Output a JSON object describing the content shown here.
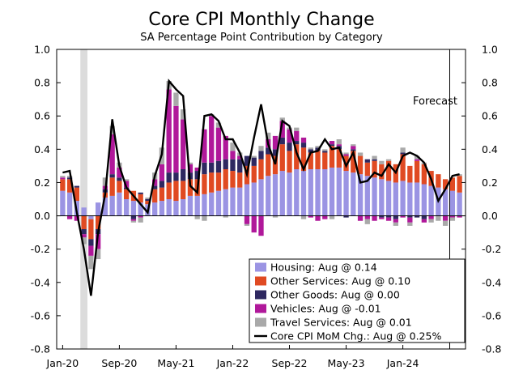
{
  "chart_data": {
    "type": "bar",
    "title": "Core CPI Monthly Change",
    "subtitle": "SA Percentage Point Contribution by Category",
    "x_tick_labels": [
      "Jan-20",
      "Sep-20",
      "May-21",
      "Jan-22",
      "Sep-22",
      "May-23",
      "Jan-24"
    ],
    "x_tick_indices": [
      0,
      8,
      16,
      24,
      32,
      40,
      48
    ],
    "ylim": [
      -0.8,
      1.0
    ],
    "y_ticks": [
      -0.8,
      -0.6,
      -0.4,
      -0.2,
      0.0,
      0.2,
      0.4,
      0.6,
      0.8,
      1.0
    ],
    "y_tick_labels": [
      "-0.8",
      "-0.6",
      "-0.4",
      "-0.2",
      "0.0",
      "0.2",
      "0.4",
      "0.6",
      "0.8",
      "1.0"
    ],
    "grid": false,
    "legend_position": "bottom-right",
    "annotation": "Forecast",
    "shaded_month_index": 3,
    "forecast_start_index": 55,
    "stacked": true,
    "series": [
      {
        "name": "Housing: Aug @ 0.14",
        "key": "housing",
        "color": "#9b94e3",
        "values": [
          0.15,
          0.14,
          0.09,
          0.05,
          -0.02,
          0.08,
          0.11,
          0.12,
          0.14,
          0.1,
          0.09,
          0.08,
          0.07,
          0.08,
          0.09,
          0.1,
          0.09,
          0.1,
          0.12,
          0.12,
          0.13,
          0.14,
          0.15,
          0.16,
          0.17,
          0.17,
          0.19,
          0.2,
          0.22,
          0.24,
          0.25,
          0.27,
          0.26,
          0.28,
          0.27,
          0.28,
          0.28,
          0.28,
          0.29,
          0.29,
          0.27,
          0.26,
          0.25,
          0.24,
          0.23,
          0.22,
          0.21,
          0.2,
          0.21,
          0.2,
          0.2,
          0.19,
          0.18,
          0.17,
          0.16,
          0.15,
          0.14
        ]
      },
      {
        "name": "Other Services: Aug @ 0.10",
        "key": "services",
        "color": "#e04a22",
        "values": [
          0.07,
          0.08,
          0.08,
          -0.08,
          -0.12,
          -0.08,
          0.03,
          0.11,
          0.07,
          0.06,
          0.06,
          0.05,
          0.02,
          0.08,
          0.08,
          0.1,
          0.12,
          0.11,
          0.1,
          0.1,
          0.12,
          0.12,
          0.11,
          0.12,
          0.1,
          0.09,
          0.11,
          0.1,
          0.12,
          0.13,
          0.11,
          0.16,
          0.13,
          0.15,
          0.14,
          0.1,
          0.11,
          0.1,
          0.13,
          0.11,
          0.09,
          0.13,
          0.11,
          0.08,
          0.1,
          0.09,
          0.12,
          0.11,
          0.16,
          0.1,
          0.13,
          0.12,
          0.09,
          0.08,
          0.06,
          0.08,
          0.1
        ]
      },
      {
        "name": "Other Goods: Aug @ 0.00",
        "key": "goods",
        "color": "#2e2860",
        "values": [
          0.0,
          0.01,
          0.01,
          -0.03,
          -0.04,
          -0.03,
          0.02,
          0.02,
          0.02,
          0.01,
          -0.02,
          0.01,
          0.01,
          0.02,
          0.04,
          0.06,
          0.05,
          0.07,
          0.04,
          0.05,
          0.07,
          0.06,
          0.07,
          0.06,
          0.07,
          0.08,
          0.06,
          0.05,
          0.05,
          0.04,
          0.04,
          0.04,
          0.05,
          0.02,
          0.03,
          0.02,
          0.02,
          0.01,
          0.01,
          0.02,
          -0.01,
          0.01,
          0.0,
          0.02,
          0.01,
          -0.01,
          -0.01,
          -0.02,
          0.01,
          -0.01,
          -0.01,
          -0.02,
          0.0,
          0.0,
          0.0,
          0.0,
          0.0
        ]
      },
      {
        "name": "Vehicles: Aug @ -0.01",
        "key": "vehicles",
        "color": "#b0189a",
        "values": [
          0.01,
          -0.02,
          -0.03,
          -0.02,
          -0.06,
          -0.09,
          0.02,
          0.24,
          0.06,
          0.04,
          -0.01,
          -0.01,
          0.0,
          0.04,
          0.1,
          0.5,
          0.4,
          0.3,
          0.05,
          0.02,
          0.2,
          0.28,
          0.2,
          0.14,
          0.05,
          0.02,
          -0.05,
          -0.1,
          -0.12,
          0.05,
          0.08,
          0.1,
          0.08,
          0.06,
          0.03,
          -0.01,
          -0.03,
          -0.02,
          0.02,
          0.01,
          0.01,
          0.02,
          -0.03,
          -0.02,
          -0.03,
          -0.01,
          -0.02,
          -0.02,
          -0.01,
          -0.03,
          0.01,
          -0.02,
          -0.02,
          0.0,
          -0.03,
          -0.01,
          -0.01
        ]
      },
      {
        "name": "Travel Services: Aug @ 0.01",
        "key": "travel",
        "color": "#a9a9a9",
        "values": [
          0.01,
          0.01,
          0.0,
          -0.04,
          -0.08,
          -0.06,
          0.05,
          0.05,
          0.03,
          0.01,
          -0.01,
          -0.03,
          0.01,
          0.04,
          0.1,
          0.05,
          0.08,
          0.06,
          0.01,
          -0.02,
          -0.03,
          0.01,
          0.03,
          -0.01,
          0.05,
          0.02,
          -0.01,
          0.01,
          0.03,
          0.04,
          -0.01,
          0.02,
          0.01,
          0.02,
          -0.02,
          0.01,
          0.01,
          0.01,
          -0.02,
          0.03,
          0.01,
          0.01,
          0.02,
          -0.03,
          0.02,
          0.02,
          0.01,
          -0.02,
          0.03,
          -0.02,
          0.02,
          0.01,
          -0.02,
          -0.03,
          -0.03,
          -0.02,
          0.01
        ]
      }
    ],
    "line": {
      "name": "Core CPI MoM Chg.: Aug @ 0.25%",
      "key": "core",
      "color": "#000000",
      "values": [
        0.26,
        0.27,
        0.02,
        -0.2,
        -0.48,
        -0.1,
        0.13,
        0.58,
        0.3,
        0.17,
        0.12,
        0.07,
        0.02,
        0.24,
        0.37,
        0.81,
        0.76,
        0.72,
        0.18,
        0.14,
        0.6,
        0.61,
        0.57,
        0.46,
        0.46,
        0.38,
        0.25,
        0.47,
        0.67,
        0.43,
        0.31,
        0.57,
        0.54,
        0.38,
        0.28,
        0.38,
        0.39,
        0.46,
        0.4,
        0.41,
        0.3,
        0.38,
        0.2,
        0.21,
        0.26,
        0.24,
        0.31,
        0.26,
        0.36,
        0.38,
        0.36,
        0.32,
        0.22,
        0.09,
        0.16,
        0.24,
        0.25
      ]
    }
  }
}
